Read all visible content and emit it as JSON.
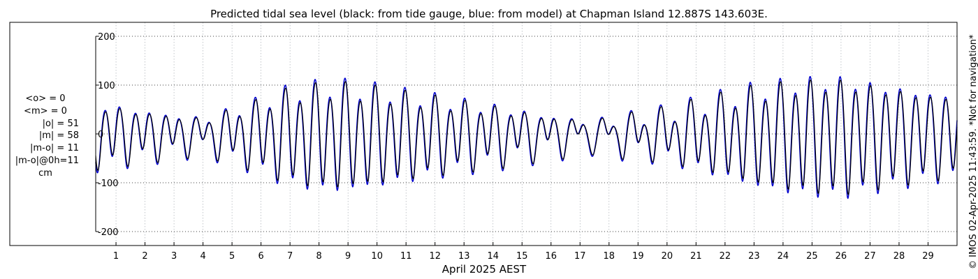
{
  "chart_data": {
    "type": "line",
    "title": "Predicted tidal sea level (black: from tide gauge, blue: from model) at Chapman Island 12.887S 143.603E.",
    "xlabel": "April 2025 AEST",
    "ylabel": "",
    "xlim": [
      0.3,
      30.0
    ],
    "ylim": [
      -230,
      230
    ],
    "yticks": [
      -200,
      -100,
      0,
      100,
      200
    ],
    "ytick_labels": [
      "-200",
      "-100",
      "0",
      "100",
      "200"
    ],
    "xticks": [
      1,
      2,
      3,
      4,
      5,
      6,
      7,
      8,
      9,
      10,
      11,
      12,
      13,
      14,
      15,
      16,
      17,
      18,
      19,
      20,
      21,
      22,
      23,
      24,
      25,
      26,
      27,
      28,
      29
    ],
    "xtick_labels": [
      "1",
      "2",
      "3",
      "4",
      "5",
      "6",
      "7",
      "8",
      "9",
      "10",
      "11",
      "12",
      "13",
      "14",
      "15",
      "16",
      "17",
      "18",
      "19",
      "20",
      "21",
      "22",
      "23",
      "24",
      "25",
      "26",
      "27",
      "28",
      "29"
    ],
    "grid": true,
    "series": [
      {
        "name": "tide gauge",
        "color": "#000000",
        "amp_scale": 0.94,
        "lag_hours": 0.35
      },
      {
        "name": "model",
        "color": "#0000cc",
        "amp_scale": 1.0,
        "lag_hours": 0.0
      }
    ],
    "semi_diurnal_amplitude_by_day": [
      {
        "day": 0.3,
        "value": 62
      },
      {
        "day": 2,
        "value": 45
      },
      {
        "day": 4,
        "value": 28
      },
      {
        "day": 5.5,
        "value": 58
      },
      {
        "day": 7,
        "value": 92
      },
      {
        "day": 8.5,
        "value": 105
      },
      {
        "day": 10,
        "value": 95
      },
      {
        "day": 11.5,
        "value": 80
      },
      {
        "day": 13,
        "value": 65
      },
      {
        "day": 14.5,
        "value": 50
      },
      {
        "day": 16,
        "value": 32
      },
      {
        "day": 17.5,
        "value": 18
      },
      {
        "day": 18.5,
        "value": 30
      },
      {
        "day": 20,
        "value": 45
      },
      {
        "day": 21.5,
        "value": 70
      },
      {
        "day": 23,
        "value": 95
      },
      {
        "day": 24.5,
        "value": 110
      },
      {
        "day": 26,
        "value": 115
      },
      {
        "day": 27.5,
        "value": 100
      },
      {
        "day": 29,
        "value": 85
      },
      {
        "day": 30,
        "value": 80
      }
    ],
    "diurnal_amplitude_by_day": [
      {
        "day": 0.3,
        "value": 15
      },
      {
        "day": 4,
        "value": 20
      },
      {
        "day": 7,
        "value": 22
      },
      {
        "day": 11,
        "value": 18
      },
      {
        "day": 15,
        "value": 22
      },
      {
        "day": 18,
        "value": 28
      },
      {
        "day": 22,
        "value": 22
      },
      {
        "day": 26,
        "value": 15
      },
      {
        "day": 30,
        "value": 12
      }
    ],
    "stats": {
      "mean_obs": "<o> = 0",
      "mean_model": "<m> = 0",
      "abs_obs": "|o| = 51",
      "abs_model": "|m| = 58",
      "abs_diff": "|m-o| = 11",
      "abs_diff_0h": "|m-o|@0h=11",
      "unit": "cm"
    }
  },
  "credit": "© IMOS 02-Apr-2025 11:43:59. *Not for navigation*",
  "colors": {
    "axis": "#000000",
    "grid": "#000000",
    "model": "#0000cc",
    "gauge": "#000000"
  }
}
